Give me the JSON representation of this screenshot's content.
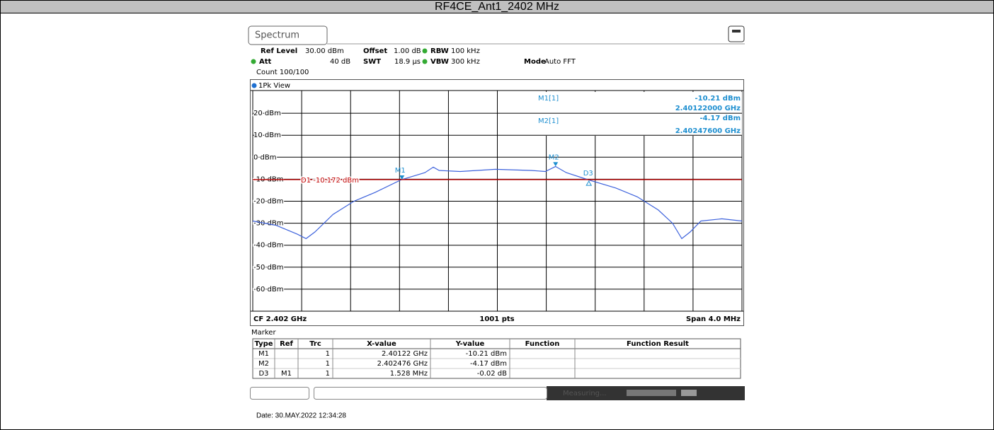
{
  "title": "RF4CE_Ant1_2402 MHz",
  "tab": "Spectrum",
  "settings": {
    "ref_level_label": "Ref Level",
    "ref_level": "30.00 dBm",
    "offset_label": "Offset",
    "offset": "1.00 dB",
    "rbw_label": "RBW",
    "rbw": "100 kHz",
    "att_label": "Att",
    "att": "40 dB",
    "swt_label": "SWT",
    "swt": "18.9 µs",
    "vbw_label": "VBW",
    "vbw": "300 kHz",
    "mode_label": "Mode",
    "mode": "Auto FFT",
    "count": "Count 100/100"
  },
  "view": "1Pk View",
  "marker_info": [
    {
      "name": "M1[1]",
      "level": "-10.21 dBm",
      "freq": "2.40122000 GHz"
    },
    {
      "name": "M2[1]",
      "level": "-4.17 dBm",
      "freq": "2.40247600 GHz"
    }
  ],
  "plot": {
    "type": "line",
    "ylim": [
      -70,
      30
    ],
    "xlim": [
      0,
      1000
    ],
    "yticks": [
      {
        "value": 20,
        "label": "20 dBm"
      },
      {
        "value": 10,
        "label": "10 dBm"
      },
      {
        "value": 0,
        "label": "0 dBm"
      },
      {
        "value": -10,
        "label": "-10 dBm"
      },
      {
        "value": -20,
        "label": "-20 dBm"
      },
      {
        "value": -30,
        "label": "-30 dBm"
      },
      {
        "value": -40,
        "label": "-40 dBm"
      },
      {
        "value": -50,
        "label": "-50 dBm"
      },
      {
        "value": -60,
        "label": "-60 dBm"
      }
    ],
    "trace": {
      "color": "#3d62dc",
      "x": [
        0,
        48,
        91,
        109,
        127,
        164,
        207,
        250,
        304,
        352,
        369,
        381,
        424,
        496,
        569,
        598,
        619,
        641,
        685,
        742,
        786,
        829,
        858,
        877,
        894,
        916,
        959,
        1000
      ],
      "values": [
        -29,
        -31,
        -35,
        -37,
        -34,
        -26,
        -20,
        -16,
        -10.2,
        -7,
        -4.5,
        -6,
        -6.5,
        -5.5,
        -6,
        -6.5,
        -4.2,
        -7,
        -10.2,
        -14,
        -18,
        -24,
        -30,
        -37,
        -34,
        -29,
        -28,
        -29
      ]
    },
    "display_line": {
      "value": -10.172,
      "label": "D1 -10.172 dBm",
      "color": "#c00000"
    },
    "markers": [
      {
        "label": "M1",
        "x": 2.40122,
        "y": -10.21
      },
      {
        "label": "M2",
        "x": 2.402476,
        "y": -4.17
      },
      {
        "label": "D3",
        "dx": 1.528,
        "dy": -0.02
      }
    ],
    "marker_color": "#1e8fd0",
    "cf": {
      "value": 2.402,
      "label": "CF 2.402 GHz"
    },
    "points": "1001 pts",
    "span": {
      "value": 4.0,
      "label": "Span 4.0 MHz"
    }
  },
  "marker_table": {
    "title": "Marker",
    "headers": [
      "Type",
      "Ref",
      "Trc",
      "X-value",
      "Y-value",
      "Function",
      "Function Result"
    ],
    "rows": [
      [
        "M1",
        null,
        "1",
        "2.40122 GHz",
        "-10.21 dBm",
        null,
        null
      ],
      [
        "M2",
        null,
        "1",
        "2.402476 GHz",
        "-4.17 dBm",
        null,
        null
      ],
      [
        "D3",
        "M1",
        "1",
        "1.528 MHz",
        "-0.02 dB",
        null,
        null
      ]
    ]
  },
  "status": "Measuring...",
  "date": "Date: 30.MAY.2022 12:34:28"
}
